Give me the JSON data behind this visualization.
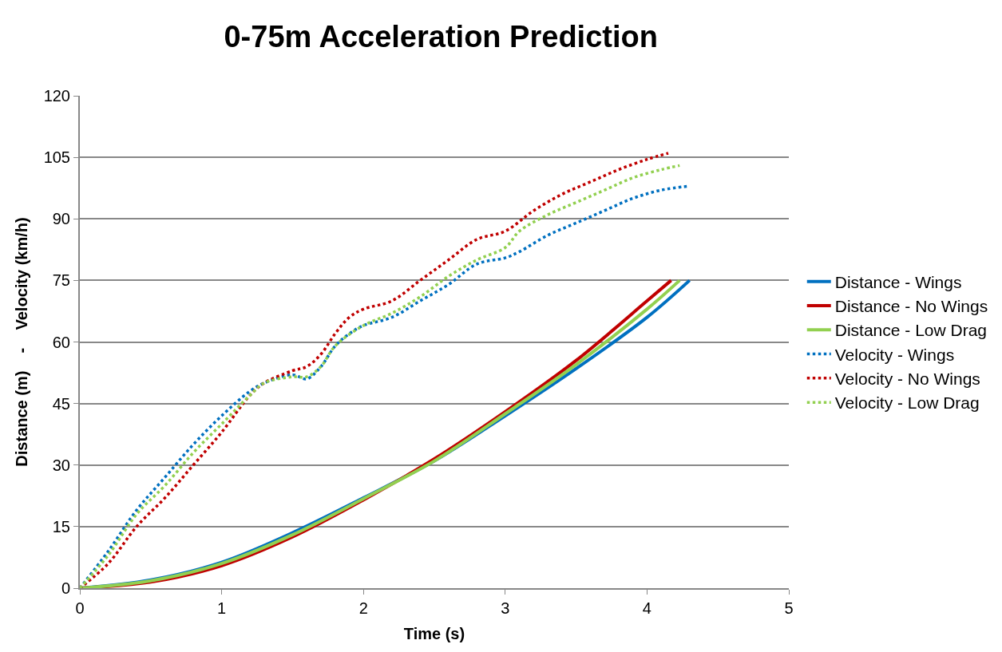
{
  "chart_data": {
    "type": "line",
    "title": "0-75m Acceleration Prediction",
    "xlabel": "Time (s)",
    "ylabel": "Distance (m)    -    Velocity (km/h)",
    "xlim": [
      0,
      5
    ],
    "xticks": [
      0,
      1,
      2,
      3,
      4,
      5
    ],
    "ylim": [
      0,
      120
    ],
    "yticks": [
      0,
      15,
      30,
      45,
      60,
      75,
      90,
      105,
      120
    ],
    "grid": "y",
    "legend": "right",
    "marker": "none",
    "series": [
      {
        "name": "Distance - Wings",
        "color": "#0070c0",
        "line_style": "solid",
        "x": [
          0,
          0.5,
          1,
          1.5,
          2,
          2.5,
          3,
          3.5,
          4,
          4.3
        ],
        "values": [
          0,
          2,
          6.3,
          13.5,
          22,
          31,
          42,
          53.5,
          66,
          75
        ]
      },
      {
        "name": "Distance - No Wings",
        "color": "#c00000",
        "line_style": "solid",
        "x": [
          0,
          0.5,
          1,
          1.5,
          2,
          2.5,
          3,
          3.5,
          4,
          4.17
        ],
        "values": [
          0,
          1.5,
          5.5,
          12.5,
          21.5,
          31.5,
          43,
          55.5,
          70,
          75
        ]
      },
      {
        "name": "Distance - Low Drag",
        "color": "#92d050",
        "line_style": "solid",
        "x": [
          0,
          0.5,
          1,
          1.5,
          2,
          2.5,
          3,
          3.5,
          4,
          4.23
        ],
        "values": [
          0,
          1.8,
          6,
          13,
          21.8,
          31,
          42.5,
          54.5,
          68,
          75
        ]
      },
      {
        "name": "Velocity - Wings",
        "color": "#0070c0",
        "line_style": "dotted",
        "x": [
          0,
          0.2,
          0.4,
          0.6,
          0.8,
          1.0,
          1.2,
          1.3,
          1.5,
          1.6,
          1.7,
          1.8,
          1.9,
          2.0,
          2.2,
          2.4,
          2.6,
          2.8,
          3.0,
          3.1,
          3.3,
          3.5,
          3.7,
          3.9,
          4.1,
          4.3
        ],
        "values": [
          0,
          9,
          19,
          27,
          35,
          42,
          48,
          50,
          52,
          51,
          54,
          59,
          62,
          64,
          66,
          70,
          74,
          79,
          80.5,
          82,
          86,
          89,
          92,
          95,
          97,
          98
        ]
      },
      {
        "name": "Velocity - No Wings",
        "color": "#c00000",
        "line_style": "dotted",
        "x": [
          0,
          0.2,
          0.4,
          0.6,
          0.8,
          1.0,
          1.2,
          1.3,
          1.5,
          1.6,
          1.7,
          1.8,
          1.9,
          2.0,
          2.2,
          2.4,
          2.6,
          2.8,
          3.0,
          3.2,
          3.4,
          3.6,
          3.8,
          4.0,
          4.15
        ],
        "values": [
          0,
          6,
          15,
          22,
          30,
          38,
          47,
          50,
          53,
          54,
          57,
          62,
          66,
          68,
          70,
          75,
          80,
          85,
          87,
          92,
          96,
          99,
          102,
          104.5,
          106
        ]
      },
      {
        "name": "Velocity - Low Drag",
        "color": "#92d050",
        "line_style": "dotted",
        "x": [
          0,
          0.2,
          0.4,
          0.6,
          0.8,
          1.0,
          1.2,
          1.3,
          1.5,
          1.6,
          1.7,
          1.8,
          2.0,
          2.2,
          2.4,
          2.6,
          2.8,
          3.0,
          3.1,
          3.3,
          3.5,
          3.7,
          3.9,
          4.1,
          4.23
        ],
        "values": [
          0,
          8,
          18,
          25,
          33,
          40,
          47,
          50,
          51.5,
          51.5,
          54,
          59,
          64,
          67,
          71,
          76,
          80,
          83,
          87,
          91,
          94,
          97,
          100,
          102,
          103
        ]
      }
    ]
  }
}
